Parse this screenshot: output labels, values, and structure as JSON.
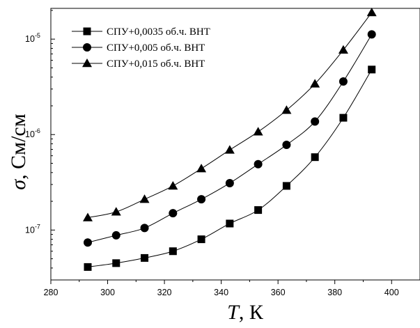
{
  "chart_data": {
    "type": "line",
    "x_axis": {
      "title_symbol": "T",
      "title_rest": ", К",
      "range": [
        280,
        410
      ],
      "ticks": [
        280,
        300,
        320,
        340,
        360,
        380,
        400
      ],
      "tick_labels": [
        "280",
        "300",
        "320",
        "340",
        "360",
        "380",
        "400"
      ]
    },
    "y_axis": {
      "title_symbol": "σ",
      "title_rest": ", См/см",
      "scale": "log",
      "range": [
        3e-08,
        2.1e-05
      ],
      "major_ticks": [
        1e-07,
        1e-06,
        1e-05
      ],
      "tick_labels": [
        {
          "base": "10",
          "exp": "-7"
        },
        {
          "base": "10",
          "exp": "-6"
        },
        {
          "base": "10",
          "exp": "-5"
        }
      ]
    },
    "grid": false,
    "legend_position": "top-left",
    "x": [
      293,
      303,
      313,
      323,
      333,
      343,
      353,
      363,
      373,
      383,
      393
    ],
    "series": [
      {
        "name": "СПУ+0,0035 об.ч. ВНТ",
        "marker": "square",
        "values": [
          4.1e-08,
          4.5e-08,
          5.1e-08,
          6e-08,
          8e-08,
          1.17e-07,
          1.62e-07,
          2.9e-07,
          5.8e-07,
          1.5e-06,
          4.8e-06
        ]
      },
      {
        "name": "СПУ+0,005 об.ч. ВНТ",
        "marker": "circle",
        "values": [
          7.4e-08,
          8.8e-08,
          1.05e-07,
          1.5e-07,
          2.1e-07,
          3.1e-07,
          4.9e-07,
          7.8e-07,
          1.37e-06,
          3.6e-06,
          1.12e-05
        ]
      },
      {
        "name": "СПУ+0,015 об.ч. ВНТ",
        "marker": "triangle",
        "values": [
          1.35e-07,
          1.55e-07,
          2.1e-07,
          2.9e-07,
          4.4e-07,
          6.9e-07,
          1.07e-06,
          1.8e-06,
          3.4e-06,
          7.7e-06,
          1.9e-05
        ]
      }
    ]
  }
}
